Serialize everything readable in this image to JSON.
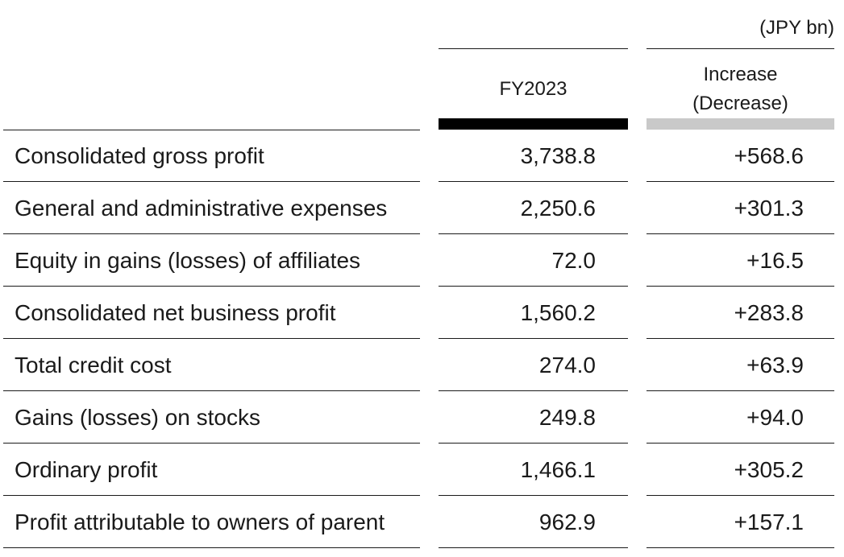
{
  "unit": "(JPY bn)",
  "columns": {
    "fy": "FY2023",
    "inc": "Increase\n(Decrease)"
  },
  "rows": [
    {
      "label": "Consolidated gross profit",
      "fy": "3,738.8",
      "inc": "+568.6"
    },
    {
      "label": "General and administrative expenses",
      "fy": "2,250.6",
      "inc": "+301.3"
    },
    {
      "label": "Equity in gains (losses) of affiliates",
      "fy": "72.0",
      "inc": "+16.5"
    },
    {
      "label": "Consolidated net business profit",
      "fy": "1,560.2",
      "inc": "+283.8"
    },
    {
      "label": "Total credit cost",
      "fy": "274.0",
      "inc": "+63.9"
    },
    {
      "label": "Gains (losses) on stocks",
      "fy": "249.8",
      "inc": "+94.0"
    },
    {
      "label": "Ordinary profit",
      "fy": "1,466.1",
      "inc": "+305.2"
    },
    {
      "label": "Profit attributable to owners of parent",
      "fy": "962.9",
      "inc": "+157.1"
    }
  ],
  "colors": {
    "fy_bar": "#000000",
    "inc_bar": "#c9c9c9"
  }
}
